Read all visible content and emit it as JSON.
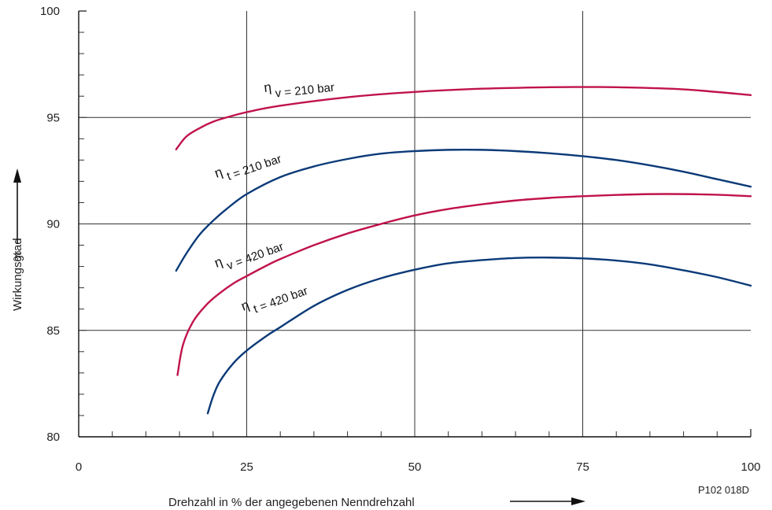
{
  "chart_data": {
    "type": "line",
    "title": "",
    "xlabel": "Drehzahl in % der angegebenen Nenndrehzahl",
    "ylabel": "Wirkungsgrad",
    "ylabel_unit": "%",
    "xlim": [
      0,
      100
    ],
    "ylim": [
      80,
      100
    ],
    "x_ticks": [
      0,
      25,
      50,
      75,
      100
    ],
    "y_ticks": [
      80,
      85,
      90,
      95,
      100
    ],
    "x_minor_step": 5,
    "y_minor_step": 1,
    "grid": true,
    "legend": "none",
    "code": "P102 018D",
    "colors": {
      "volumetric": "#c0134a",
      "total": "#0b3a78",
      "grid": "#333333"
    },
    "series": [
      {
        "label_greek": "η",
        "label_sub": "v",
        "label_rest": " = 210 bar",
        "color": "#c0134a",
        "x": [
          14.5,
          16,
          18,
          20,
          22,
          25,
          30,
          40,
          50,
          60,
          70,
          75,
          80,
          90,
          100
        ],
        "y": [
          93.5,
          94.1,
          94.5,
          94.8,
          95.0,
          95.25,
          95.55,
          95.95,
          96.2,
          96.35,
          96.42,
          96.43,
          96.42,
          96.32,
          96.05
        ]
      },
      {
        "label_greek": "η",
        "label_sub": "t",
        "label_rest": " = 210 bar",
        "color": "#0b3a78",
        "x": [
          14.5,
          16,
          18,
          20,
          22,
          25,
          30,
          35,
          40,
          45,
          50,
          55,
          60,
          65,
          70,
          75,
          80,
          85,
          90,
          95,
          100
        ],
        "y": [
          87.8,
          88.6,
          89.5,
          90.15,
          90.7,
          91.4,
          92.2,
          92.7,
          93.05,
          93.3,
          93.42,
          93.48,
          93.48,
          93.42,
          93.32,
          93.18,
          93.0,
          92.75,
          92.45,
          92.1,
          91.75
        ]
      },
      {
        "label_greek": "η",
        "label_sub": "v",
        "label_rest": " = 420 bar",
        "color": "#c0134a",
        "x": [
          14.7,
          15.5,
          17,
          19,
          21,
          23,
          25,
          28,
          30,
          35,
          40,
          45,
          50,
          55,
          60,
          65,
          70,
          75,
          80,
          85,
          90,
          95,
          100
        ],
        "y": [
          82.9,
          84.3,
          85.4,
          86.2,
          86.75,
          87.2,
          87.55,
          88.05,
          88.35,
          89.0,
          89.55,
          90.0,
          90.4,
          90.7,
          90.92,
          91.1,
          91.22,
          91.3,
          91.36,
          91.4,
          91.4,
          91.37,
          91.3
        ]
      },
      {
        "label_greek": "η",
        "label_sub": "t",
        "label_rest": " = 420 bar",
        "color": "#0b3a78",
        "x": [
          19.2,
          20,
          21,
          23,
          25,
          28,
          30,
          35,
          40,
          45,
          50,
          55,
          60,
          65,
          70,
          75,
          80,
          85,
          90,
          95,
          100
        ],
        "y": [
          81.1,
          81.9,
          82.6,
          83.45,
          84.05,
          84.75,
          85.15,
          86.15,
          86.9,
          87.45,
          87.85,
          88.15,
          88.3,
          88.4,
          88.42,
          88.38,
          88.28,
          88.1,
          87.82,
          87.5,
          87.1
        ]
      }
    ]
  }
}
